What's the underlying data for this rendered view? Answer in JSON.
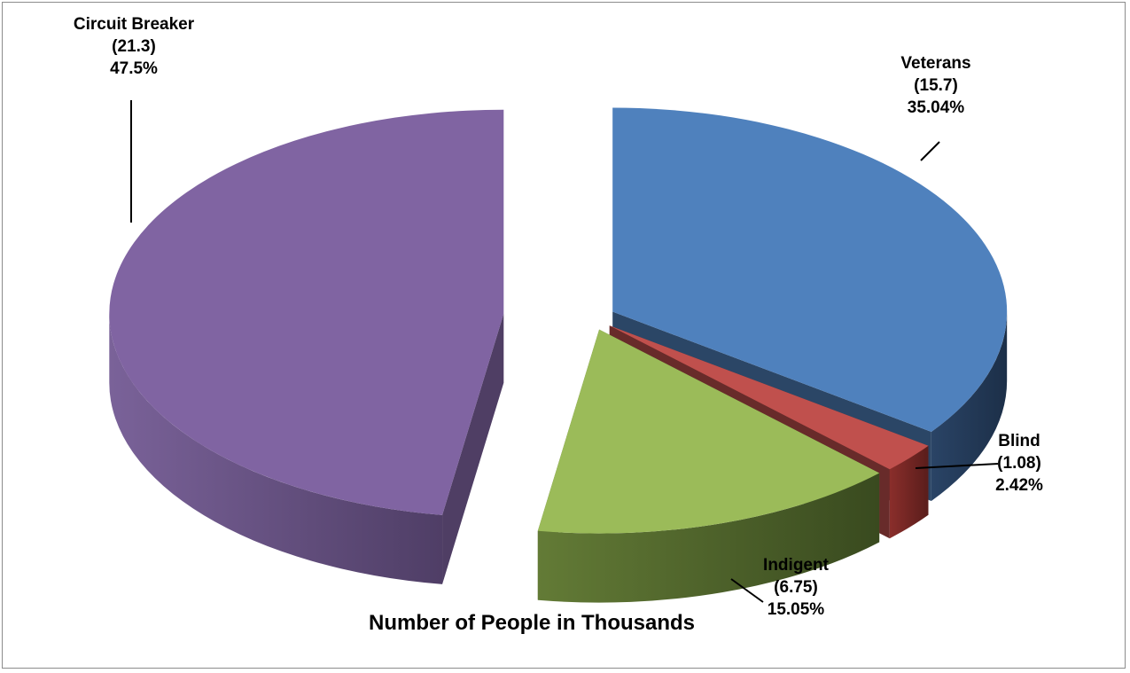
{
  "chart_data": {
    "type": "pie",
    "title": "Number of People in Thousands",
    "slices": [
      {
        "name": "Veterans",
        "value": 15.7,
        "value_text": "(15.7)",
        "percent_text": "35.04%",
        "color": "#4f81bd"
      },
      {
        "name": "Blind",
        "value": 1.08,
        "value_text": "(1.08)",
        "percent_text": "2.42%",
        "color": "#c0504d"
      },
      {
        "name": "Indigent",
        "value": 6.75,
        "value_text": "(6.75)",
        "percent_text": "15.05%",
        "color": "#9bbb59"
      },
      {
        "name": "Circuit Breaker",
        "value": 21.3,
        "value_text": "(21.3)",
        "percent_text": "47.5%",
        "color": "#8064a2"
      }
    ],
    "style": "3d-exploded",
    "legend": "none"
  }
}
